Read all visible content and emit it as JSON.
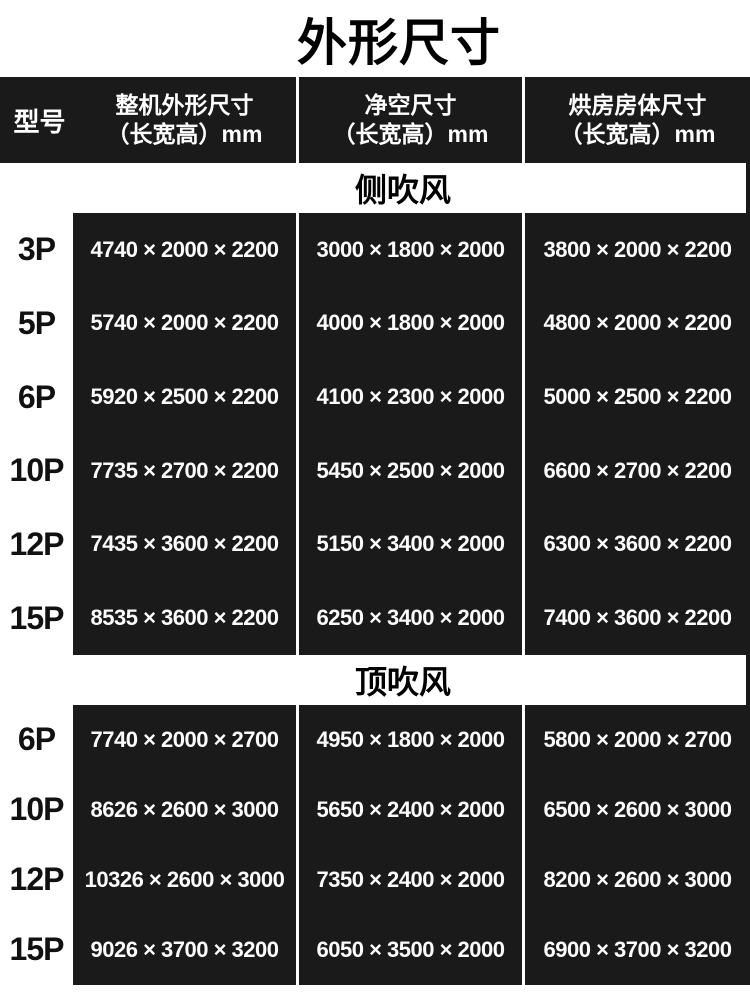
{
  "title": "外形尺寸",
  "colors": {
    "table_black": "#1a1a1a",
    "separator_white": "#ffffff",
    "header_text": "#ffffff",
    "body_text": "#fbfbfb",
    "accent_text": "#000000"
  },
  "header": {
    "model_label": "型号",
    "columns": [
      {
        "line1": "整机外形尺寸",
        "line2": "（长宽高）mm"
      },
      {
        "line1": "净空尺寸",
        "line2": "（长宽高）mm"
      },
      {
        "line1": "烘房房体尺寸",
        "line2": "（长宽高）mm"
      }
    ]
  },
  "sections": [
    {
      "name": "侧吹风",
      "rows": [
        {
          "model": "3P",
          "dims": [
            "4740 × 2000 × 2200",
            "3000 × 1800 × 2000",
            "3800 × 2000 × 2200"
          ]
        },
        {
          "model": "5P",
          "dims": [
            "5740 × 2000 × 2200",
            "4000 × 1800 × 2000",
            "4800 × 2000 × 2200"
          ]
        },
        {
          "model": "6P",
          "dims": [
            "5920 × 2500 × 2200",
            "4100 × 2300 × 2000",
            "5000 × 2500 × 2200"
          ]
        },
        {
          "model": "10P",
          "dims": [
            "7735 × 2700 × 2200",
            "5450 × 2500 × 2000",
            "6600 × 2700 × 2200"
          ]
        },
        {
          "model": "12P",
          "dims": [
            "7435 × 3600 × 2200",
            "5150 × 3400 × 2000",
            "6300 × 3600 × 2200"
          ]
        },
        {
          "model": "15P",
          "dims": [
            "8535 × 3600 × 2200",
            "6250 × 3400 × 2000",
            "7400 × 3600 × 2200"
          ]
        }
      ]
    },
    {
      "name": "顶吹风",
      "rows": [
        {
          "model": "6P",
          "dims": [
            "7740 × 2000 × 2700",
            "4950 × 1800 × 2000",
            "5800 × 2000 × 2700"
          ]
        },
        {
          "model": "10P",
          "dims": [
            "8626 × 2600 × 3000",
            "5650 × 2400 × 2000",
            "6500 × 2600 × 3000"
          ]
        },
        {
          "model": "12P",
          "dims": [
            "10326 × 2600 × 3000",
            "7350 × 2400 × 2000",
            "8200 × 2600 × 3000"
          ]
        },
        {
          "model": "15P",
          "dims": [
            "9026 × 3700 × 3200",
            "6050 × 3500 × 2000",
            "6900 × 3700 × 3200"
          ]
        }
      ]
    }
  ]
}
